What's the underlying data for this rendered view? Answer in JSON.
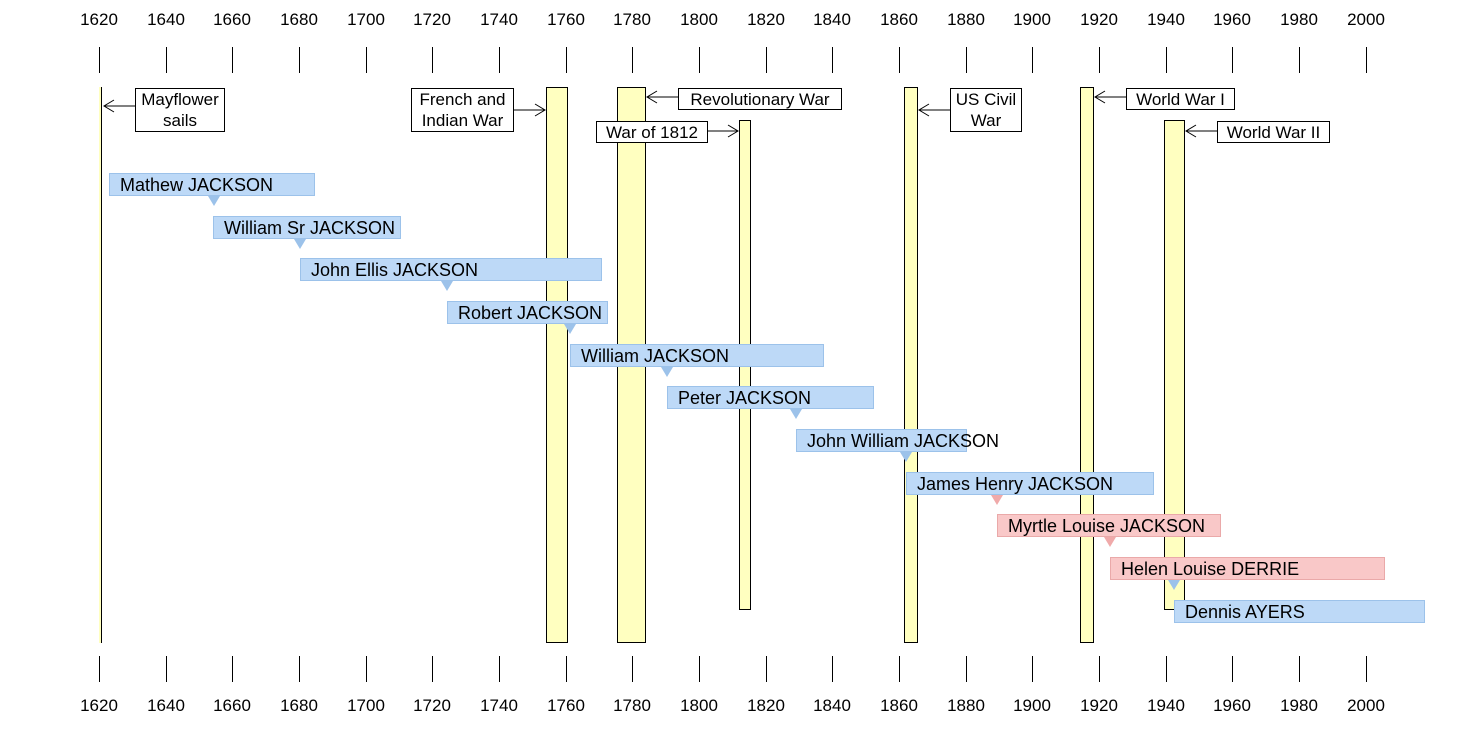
{
  "axis": {
    "years": [
      "1620",
      "1640",
      "1660",
      "1680",
      "1700",
      "1720",
      "1740",
      "1760",
      "1780",
      "1800",
      "1820",
      "1840",
      "1860",
      "1880",
      "1900",
      "1920",
      "1940",
      "1960",
      "1980",
      "2000"
    ]
  },
  "events": [
    {
      "id": "mayflower",
      "label": "Mayflower sails",
      "lines": [
        "Mayflower",
        "sails"
      ],
      "start": 1620,
      "end": 1620
    },
    {
      "id": "french-indian",
      "label": "French and Indian War",
      "lines": [
        "French and",
        "Indian War"
      ],
      "start": 1754,
      "end": 1760
    },
    {
      "id": "revolutionary",
      "label": "Revolutionary War",
      "lines": [
        "Revolutionary War"
      ],
      "start": 1775,
      "end": 1783
    },
    {
      "id": "war-1812",
      "label": "War of 1812",
      "lines": [
        "War of 1812"
      ],
      "start": 1812,
      "end": 1815
    },
    {
      "id": "civil-war",
      "label": "US Civil War",
      "lines": [
        "US Civil",
        "War"
      ],
      "start": 1861,
      "end": 1865
    },
    {
      "id": "ww1",
      "label": "World War I",
      "lines": [
        "World War I"
      ],
      "start": 1914,
      "end": 1918
    },
    {
      "id": "ww2",
      "label": "World War II",
      "lines": [
        "World War II"
      ],
      "start": 1939,
      "end": 1945
    }
  ],
  "people": [
    {
      "name": "Mathew JACKSON",
      "gender": "male"
    },
    {
      "name": "William  Sr JACKSON",
      "gender": "male"
    },
    {
      "name": "John Ellis JACKSON",
      "gender": "male"
    },
    {
      "name": "Robert JACKSON",
      "gender": "male"
    },
    {
      "name": "William JACKSON",
      "gender": "male"
    },
    {
      "name": "Peter JACKSON",
      "gender": "male"
    },
    {
      "name": "John William JACKSON",
      "gender": "male"
    },
    {
      "name": "James Henry JACKSON",
      "gender": "male"
    },
    {
      "name": "Myrtle Louise JACKSON",
      "gender": "female"
    },
    {
      "name": "Helen Louise DERRIE",
      "gender": "female"
    },
    {
      "name": "Dennis AYERS",
      "gender": "male"
    }
  ],
  "colors": {
    "male": "#bdd9f7",
    "female": "#f9c8c8",
    "event": "#ffffc0"
  }
}
